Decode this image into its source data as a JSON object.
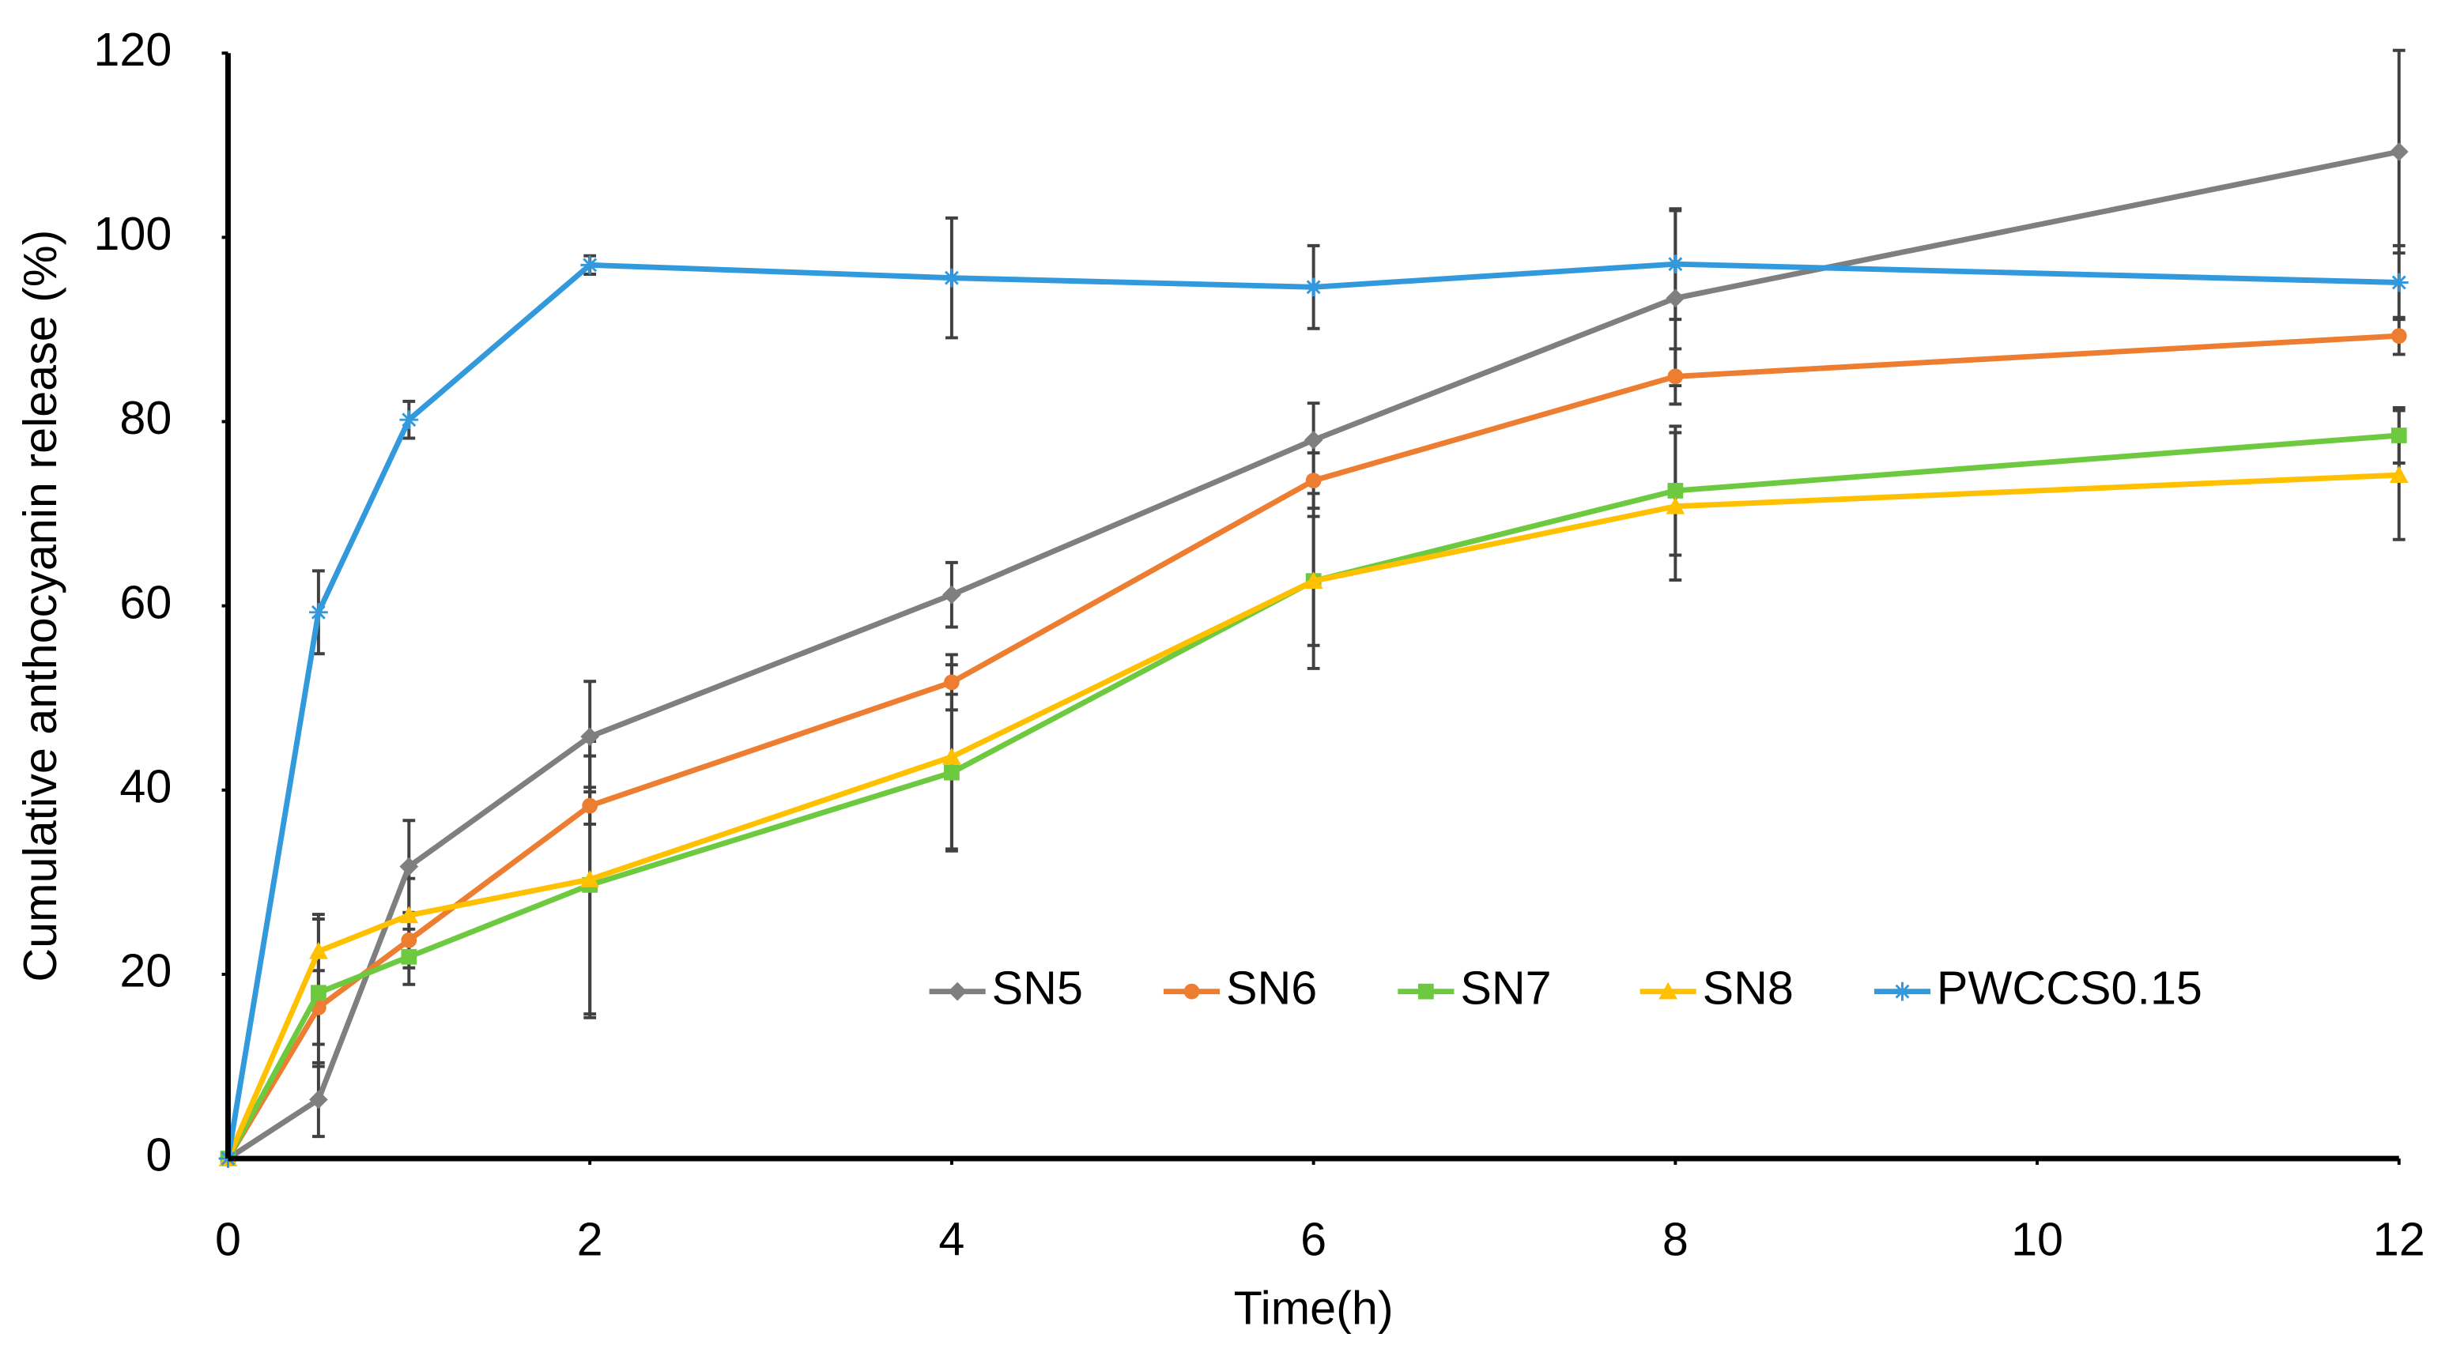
{
  "chart_data": {
    "type": "line",
    "x_label": "Time(h)",
    "y_label": "Cumulative anthocyanin release (%)",
    "x": [
      0,
      0.5,
      1,
      2,
      4,
      6,
      8,
      12
    ],
    "series": [
      {
        "name": "SN5",
        "color": "#7f7f7f",
        "marker": "diamond",
        "values": [
          0,
          6.4,
          31.7,
          45.8,
          61.2,
          78,
          93.4,
          109.3
        ],
        "errors": [
          0,
          4,
          5,
          6,
          3.5,
          4,
          9.5,
          11
        ]
      },
      {
        "name": "SN6",
        "color": "#ed7d31",
        "marker": "circle",
        "values": [
          0,
          16.4,
          23.7,
          38.3,
          51.7,
          73.6,
          84.9,
          89.3
        ],
        "errors": [
          0,
          4,
          3,
          2,
          3,
          3,
          3,
          2
        ]
      },
      {
        "name": "SN7",
        "color": "#6dc93f",
        "marker": "square",
        "values": [
          0,
          18,
          21.9,
          29.7,
          41.9,
          62.7,
          72.5,
          78.5
        ],
        "errors": [
          0,
          8,
          3,
          14,
          8.5,
          9.5,
          7,
          3
        ]
      },
      {
        "name": "SN8",
        "color": "#ffc000",
        "marker": "triangle",
        "values": [
          0,
          22.5,
          26.4,
          30.3,
          43.6,
          62.7,
          70.8,
          74.2
        ],
        "errors": [
          0,
          4,
          4,
          15,
          10,
          7,
          8,
          7
        ]
      },
      {
        "name": "PWCCS0.15",
        "color": "#3399dd",
        "marker": "star",
        "values": [
          0,
          59.3,
          80.2,
          97,
          95.6,
          94.6,
          97.1,
          95.1
        ],
        "errors": [
          0,
          4.5,
          2,
          1,
          6.5,
          4.5,
          6,
          4
        ]
      }
    ],
    "xlim": [
      0,
      12
    ],
    "xticks": [
      0,
      2,
      4,
      6,
      8,
      10,
      12
    ],
    "ylim": [
      0,
      120
    ],
    "yticks": [
      0,
      20,
      40,
      60,
      80,
      100,
      120
    ],
    "grid": false
  }
}
